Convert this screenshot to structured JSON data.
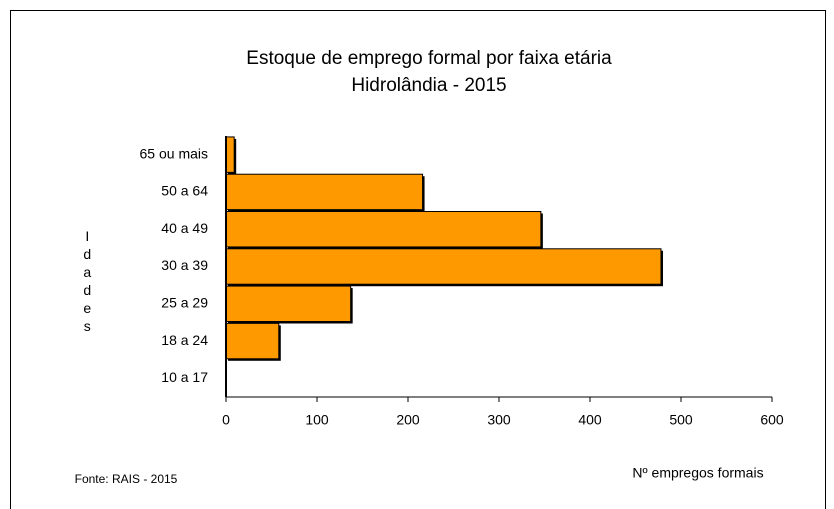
{
  "chart_data": {
    "type": "barh",
    "title": "Estoque de emprego formal por faixa etária",
    "subtitle": "Hidrolândia - 2015",
    "y_label": "Idades",
    "x_label": "Nº empregos formais",
    "note": "Fonte: RAIS - 2015",
    "categories": [
      "10 a 17",
      "18 a 24",
      "25 a 29",
      "30 a 39",
      "40 a 49",
      "50 a 64",
      "65 ou mais"
    ],
    "values": [
      0,
      58,
      137,
      478,
      346,
      216,
      9
    ],
    "color": "#ff9900",
    "xlim": [
      0,
      600
    ],
    "xticks": [
      0,
      100,
      200,
      300,
      400,
      500,
      600
    ],
    "grid": false
  }
}
